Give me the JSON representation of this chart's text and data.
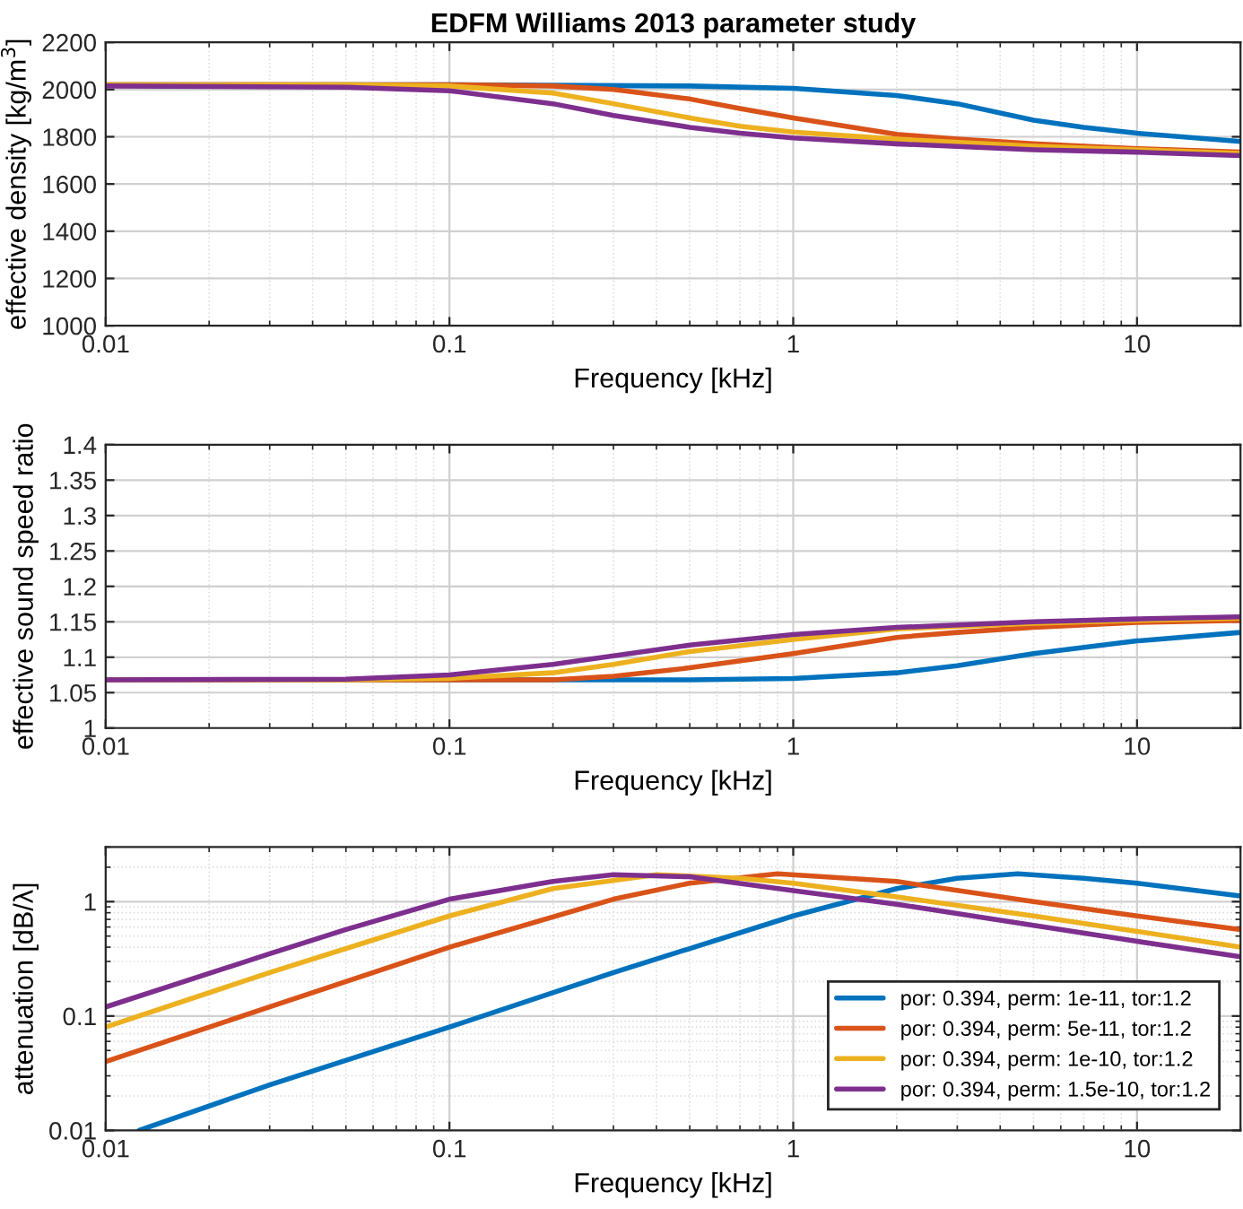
{
  "chart_data": [
    {
      "type": "line",
      "title": "EDFM Williams 2013 parameter study",
      "xlabel": "Frequency [kHz]",
      "ylabel": "effective density [kg/m$^{3}$]",
      "log": "x",
      "grid": true,
      "xlim": [
        0.01,
        20
      ],
      "xticks": [
        0.01,
        0.1,
        1,
        10
      ],
      "ylim": [
        1000,
        2200
      ],
      "yticks": [
        1000,
        1200,
        1400,
        1600,
        1800,
        2000,
        2200
      ],
      "series": [
        {
          "color": "#0072bd",
          "x": [
            0.01,
            0.1,
            0.5,
            1,
            2,
            3,
            5,
            7,
            10,
            20
          ],
          "values": [
            2020,
            2020,
            2015,
            2005,
            1975,
            1940,
            1870,
            1840,
            1815,
            1780
          ]
        },
        {
          "color": "#d95319",
          "x": [
            0.01,
            0.1,
            0.2,
            0.3,
            0.5,
            0.7,
            1,
            2,
            3,
            5,
            10,
            20
          ],
          "values": [
            2020,
            2020,
            2015,
            2000,
            1960,
            1920,
            1880,
            1810,
            1790,
            1770,
            1750,
            1735
          ]
        },
        {
          "color": "#edb120",
          "x": [
            0.01,
            0.05,
            0.1,
            0.2,
            0.3,
            0.5,
            0.7,
            1,
            2,
            5,
            10,
            20
          ],
          "values": [
            2020,
            2020,
            2015,
            1985,
            1940,
            1880,
            1845,
            1820,
            1790,
            1760,
            1745,
            1730
          ]
        },
        {
          "color": "#7e2f8e",
          "x": [
            0.01,
            0.05,
            0.1,
            0.2,
            0.3,
            0.5,
            0.7,
            1,
            2,
            5,
            10,
            20
          ],
          "values": [
            2015,
            2010,
            1995,
            1940,
            1890,
            1840,
            1815,
            1795,
            1770,
            1745,
            1735,
            1720
          ]
        }
      ]
    },
    {
      "type": "line",
      "xlabel": "Frequency [kHz]",
      "ylabel": "effective sound speed ratio",
      "log": "x",
      "grid": true,
      "xlim": [
        0.01,
        20
      ],
      "xticks": [
        0.01,
        0.1,
        1,
        10
      ],
      "ylim": [
        1,
        1.4
      ],
      "yticks": [
        1,
        1.05,
        1.1,
        1.15,
        1.2,
        1.25,
        1.3,
        1.35,
        1.4
      ],
      "series": [
        {
          "color": "#0072bd",
          "x": [
            0.01,
            0.5,
            1,
            2,
            3,
            5,
            10,
            20
          ],
          "values": [
            1.068,
            1.068,
            1.07,
            1.078,
            1.088,
            1.105,
            1.123,
            1.135
          ]
        },
        {
          "color": "#d95319",
          "x": [
            0.01,
            0.2,
            0.3,
            0.5,
            1,
            2,
            3,
            5,
            10,
            20
          ],
          "values": [
            1.068,
            1.068,
            1.073,
            1.085,
            1.105,
            1.128,
            1.135,
            1.142,
            1.149,
            1.152
          ]
        },
        {
          "color": "#edb120",
          "x": [
            0.01,
            0.05,
            0.1,
            0.2,
            0.3,
            0.5,
            1,
            2,
            5,
            10,
            20
          ],
          "values": [
            1.068,
            1.068,
            1.07,
            1.078,
            1.09,
            1.108,
            1.125,
            1.14,
            1.148,
            1.152,
            1.155
          ]
        },
        {
          "color": "#7e2f8e",
          "x": [
            0.01,
            0.05,
            0.1,
            0.2,
            0.3,
            0.5,
            1,
            2,
            5,
            10,
            20
          ],
          "values": [
            1.068,
            1.069,
            1.075,
            1.09,
            1.102,
            1.117,
            1.132,
            1.142,
            1.15,
            1.154,
            1.157
          ]
        }
      ]
    },
    {
      "type": "line",
      "xlabel": "Frequency [kHz]",
      "ylabel": "attenuation [dB/λ]",
      "log": "xy",
      "grid": true,
      "legend": "bottom right",
      "xlim": [
        0.01,
        20
      ],
      "xticks": [
        0.01,
        0.1,
        1,
        10
      ],
      "ylim": [
        0.01,
        3
      ],
      "yticks": [
        0.01,
        0.1,
        1
      ],
      "series": [
        {
          "name": "por: 0.394, perm: 1e-11, tor:1.2",
          "color": "#0072bd",
          "x": [
            0.0125,
            0.03,
            0.1,
            0.3,
            1,
            2,
            3,
            4.5,
            7,
            10,
            20
          ],
          "values": [
            0.01,
            0.025,
            0.08,
            0.24,
            0.75,
            1.3,
            1.6,
            1.75,
            1.6,
            1.45,
            1.12
          ]
        },
        {
          "name": "por: 0.394, perm: 5e-11, tor:1.2",
          "color": "#d95319",
          "x": [
            0.01,
            0.03,
            0.1,
            0.3,
            0.5,
            0.9,
            2,
            5,
            10,
            20
          ],
          "values": [
            0.04,
            0.12,
            0.4,
            1.05,
            1.45,
            1.75,
            1.5,
            1.0,
            0.75,
            0.57
          ]
        },
        {
          "name": "por: 0.394, perm: 1e-10, tor:1.2",
          "color": "#edb120",
          "x": [
            0.01,
            0.03,
            0.1,
            0.2,
            0.4,
            0.7,
            1,
            2,
            5,
            10,
            20
          ],
          "values": [
            0.08,
            0.24,
            0.75,
            1.3,
            1.72,
            1.6,
            1.45,
            1.1,
            0.75,
            0.55,
            0.4
          ]
        },
        {
          "name": "por: 0.394, perm: 1.5e-10, tor:1.2",
          "color": "#7e2f8e",
          "x": [
            0.01,
            0.03,
            0.05,
            0.1,
            0.2,
            0.3,
            0.5,
            1,
            2,
            5,
            10,
            20
          ],
          "values": [
            0.12,
            0.35,
            0.57,
            1.05,
            1.5,
            1.72,
            1.65,
            1.25,
            0.95,
            0.62,
            0.45,
            0.33
          ]
        }
      ]
    }
  ]
}
